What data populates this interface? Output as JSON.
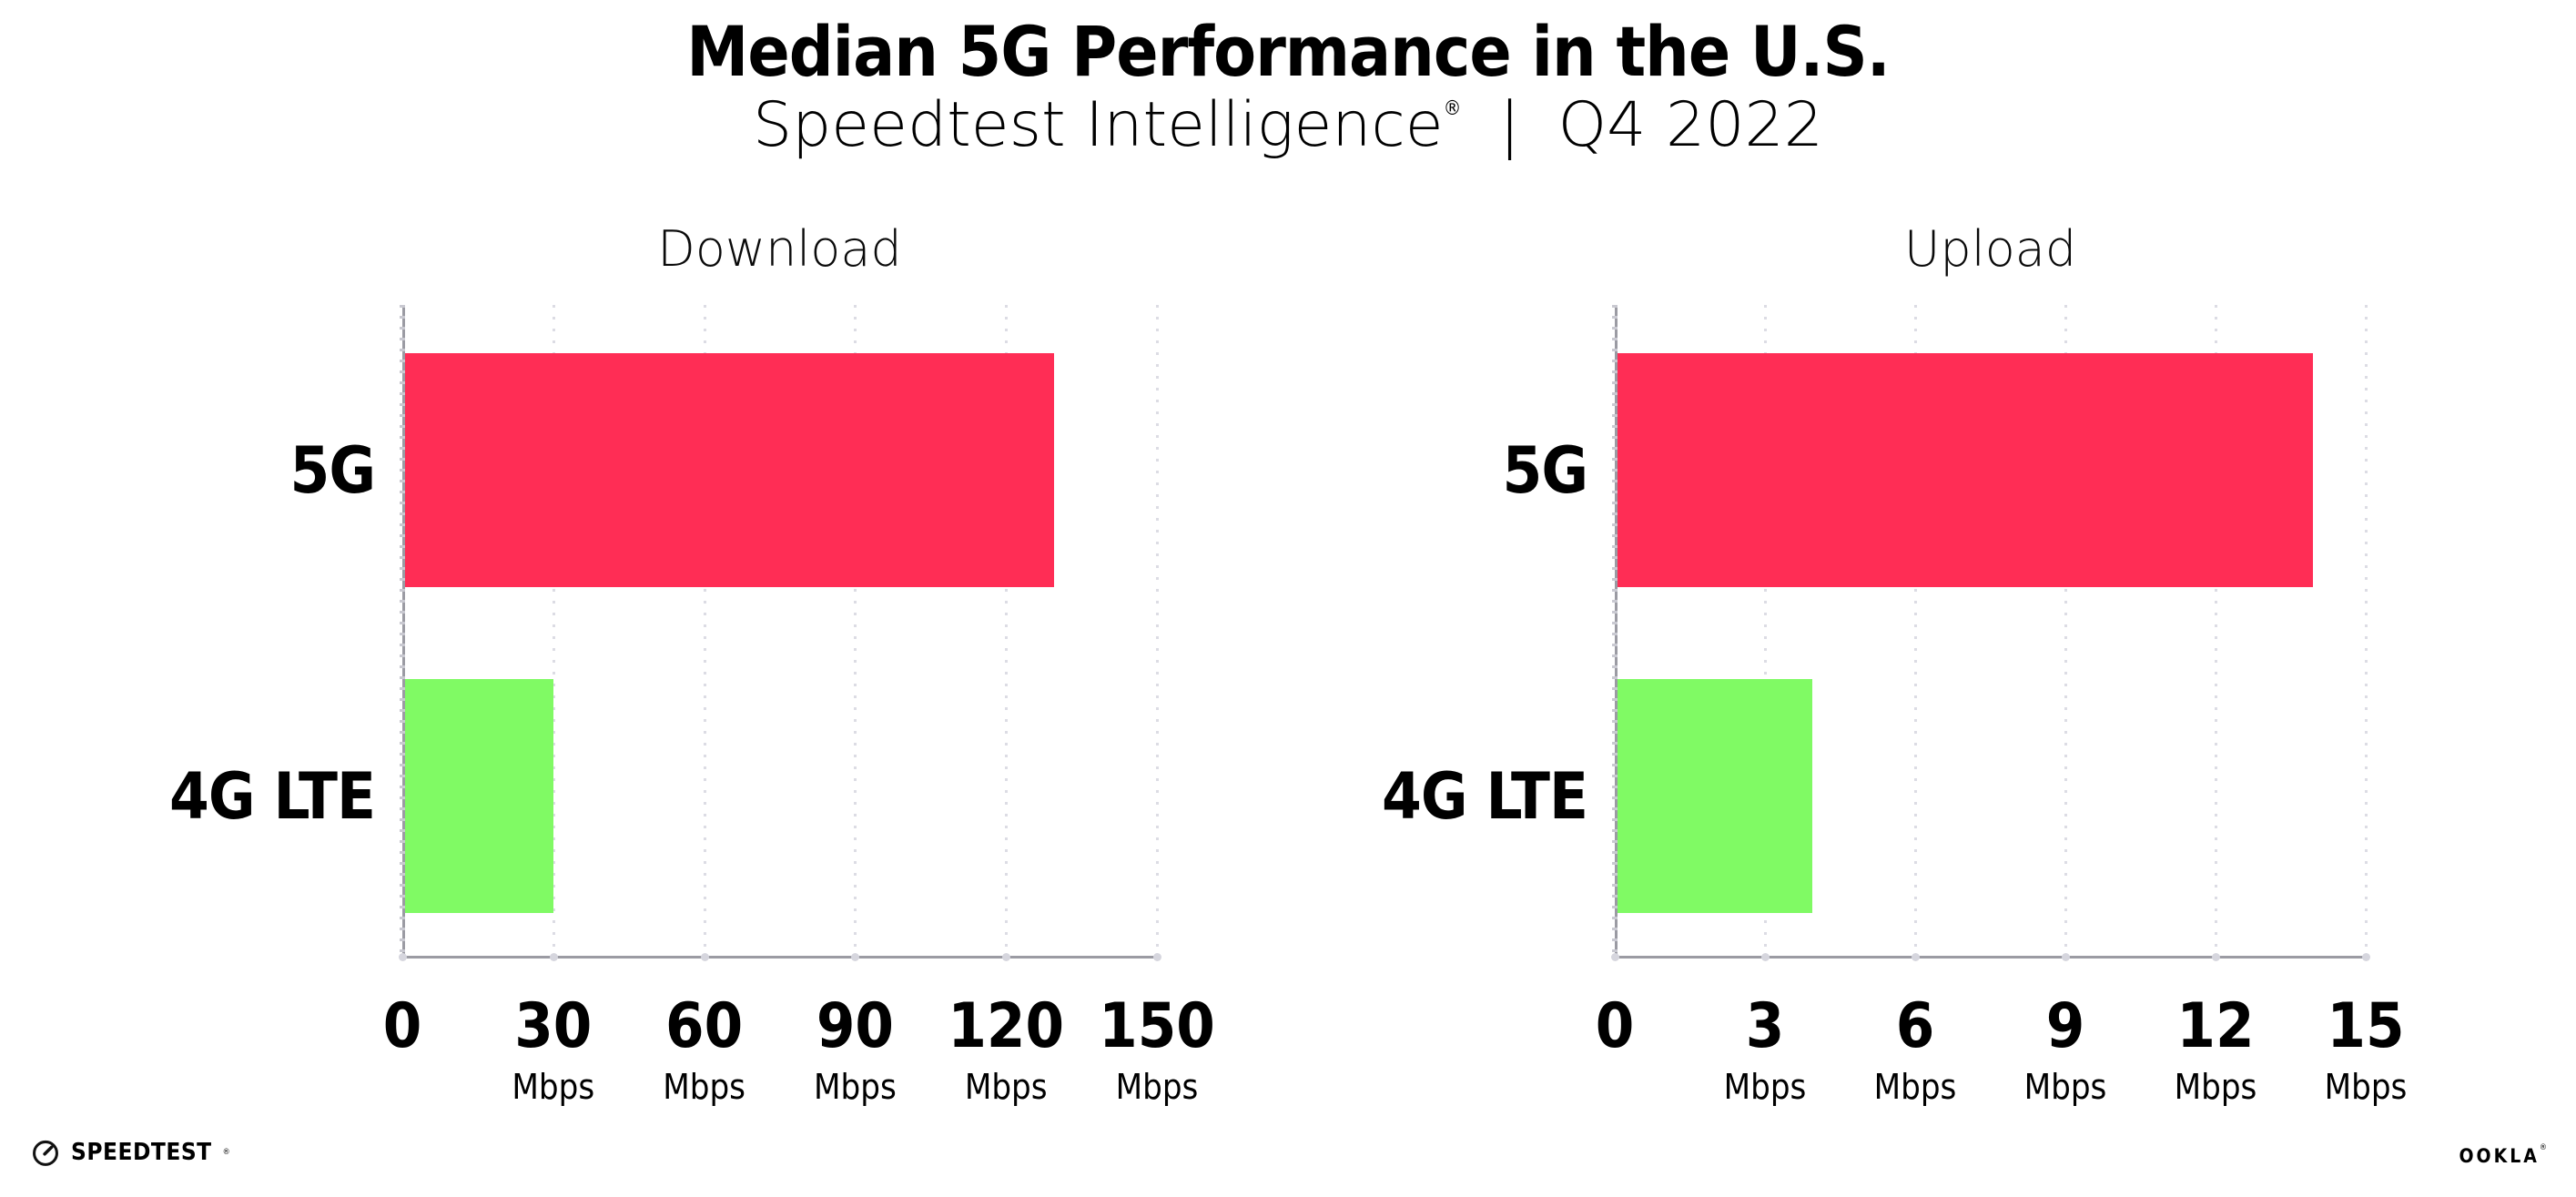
{
  "header": {
    "title": "Median 5G Performance in the U.S.",
    "subtitle_brand": "Speedtest Intelligence",
    "subtitle_reg": "®",
    "subtitle_divider": "|",
    "subtitle_period": "Q4 2022"
  },
  "chart_data": [
    {
      "type": "bar",
      "orientation": "horizontal",
      "title": "Download",
      "categories": [
        "5G",
        "4G LTE"
      ],
      "values": [
        129.5,
        30
      ],
      "unit": "Mbps",
      "xlim": [
        0,
        150
      ],
      "xticks": [
        0,
        30,
        60,
        90,
        120,
        150
      ],
      "xtick_unit_label": "Mbps",
      "bar_colors": [
        "#FF2D55",
        "#80FA64"
      ],
      "grid": "vertical-dotted",
      "legend": "none"
    },
    {
      "type": "bar",
      "orientation": "horizontal",
      "title": "Upload",
      "categories": [
        "5G",
        "4G LTE"
      ],
      "values": [
        13.95,
        3.95
      ],
      "unit": "Mbps",
      "xlim": [
        0,
        15
      ],
      "xticks": [
        0,
        3,
        6,
        9,
        12,
        15
      ],
      "xtick_unit_label": "Mbps",
      "bar_colors": [
        "#FF2D55",
        "#80FA64"
      ],
      "grid": "vertical-dotted",
      "legend": "none"
    }
  ],
  "footer": {
    "speedtest_text": "SPEEDTEST",
    "speedtest_reg": "®",
    "ookla_text": "OOKLA",
    "ookla_reg": "®"
  },
  "colors": {
    "bar_5g": "#FF2D55",
    "bar_4g_lte": "#80FA64",
    "axis": "#9B9BA3",
    "gridline": "#DCDCE4",
    "text": "#000000"
  }
}
